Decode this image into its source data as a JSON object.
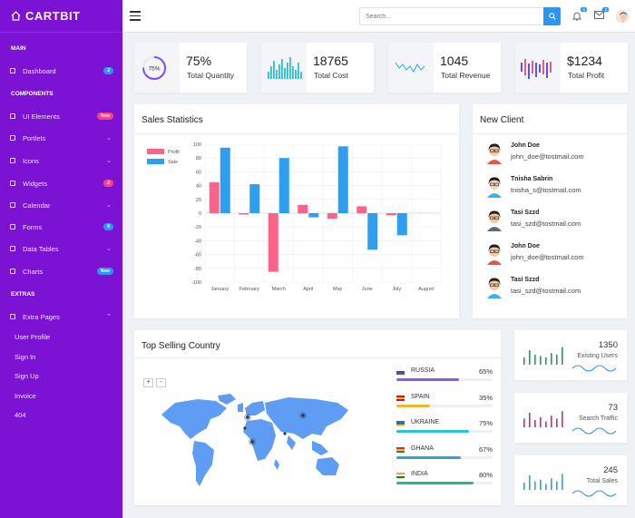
{
  "brand": "CARTBIT",
  "sidebar": {
    "sections": {
      "main": "MAIN",
      "components": "COMPONENTS",
      "extras": "EXTRAS"
    },
    "items": [
      {
        "label": "Dashboard",
        "badge": "2",
        "badge_color": "#2d95f0"
      },
      {
        "label": "UI Elements",
        "badge": "New",
        "badge_color": "#ff3f7f"
      },
      {
        "label": "Portlets"
      },
      {
        "label": "Icons"
      },
      {
        "label": "Widgets",
        "badge": "2",
        "badge_color": "#ff3f7f"
      },
      {
        "label": "Calendar"
      },
      {
        "label": "Forms",
        "badge": "6",
        "badge_color": "#2d95f0"
      },
      {
        "label": "Data Tables"
      },
      {
        "label": "Charts",
        "badge": "New",
        "badge_color": "#2d95f0"
      },
      {
        "label": "Extra Pages"
      }
    ],
    "subitems": [
      "User Profile",
      "Sign In",
      "Sign Up",
      "Invoice",
      "404"
    ]
  },
  "topbar": {
    "search_placeholder": "Search...",
    "notif_count": "6",
    "mail_count": "3"
  },
  "stats": [
    {
      "value": "75%",
      "label": "Total Quantity",
      "ring": "75%",
      "color": "#7c4dff"
    },
    {
      "value": "18765",
      "label": "Total Cost",
      "color": "#2bc0d6"
    },
    {
      "value": "1045",
      "label": "Total Revenue",
      "color": "#2ba5d6"
    },
    {
      "value": "$1234",
      "label": "Total Profit",
      "color": "#6a4ee0"
    }
  ],
  "sales": {
    "title": "Sales Statistics"
  },
  "chart_data": {
    "type": "bar",
    "categories": [
      "January",
      "February",
      "March",
      "April",
      "May",
      "June",
      "July",
      "August"
    ],
    "series": [
      {
        "name": "Profit",
        "color": "#fb6488",
        "values": [
          45,
          -2,
          -85,
          12,
          -8,
          10,
          -3,
          null
        ]
      },
      {
        "name": "Sale",
        "color": "#2d9ef0",
        "values": [
          95,
          42,
          80,
          -6,
          97,
          -53,
          -32,
          null
        ]
      }
    ],
    "ylim": [
      -100,
      100
    ],
    "yticks": [
      "100",
      "80",
      "60",
      "40",
      "20",
      "0",
      "-20",
      "-40",
      "-60",
      "-80",
      "-100"
    ]
  },
  "clients": {
    "title": "New Client",
    "list": [
      {
        "name": "John Doe",
        "email": "john_doe@tostmail.com",
        "hair": "#222",
        "skin": "#f3c9a6",
        "shirt": "#e8543d"
      },
      {
        "name": "Tnisha Sabrin",
        "email": "tnisha_s@tostmail.com",
        "hair": "#1a1a1a",
        "skin": "#f6d2b8",
        "shirt": "#3bb3e8"
      },
      {
        "name": "Tasi Szzd",
        "email": "tasi_szd@tostmail.com",
        "hair": "#222",
        "skin": "#f3c9a6",
        "shirt": "#5e6a7a"
      },
      {
        "name": "John Doe",
        "email": "john_doe@tostmail.com",
        "hair": "#222",
        "skin": "#f3c9a6",
        "shirt": "#e8543d"
      },
      {
        "name": "Tasi Szzd",
        "email": "tasi_szd@tostmail.com",
        "hair": "#222",
        "skin": "#f3c9a6",
        "shirt": "#3bb3e8"
      }
    ]
  },
  "countries": {
    "title": "Top Selling Country",
    "zoom_in": "+",
    "zoom_out": "-",
    "list": [
      {
        "name": "RUSSIA",
        "pct": "65%",
        "value": 0.65,
        "color": "#8c5ce8",
        "flag": [
          "#fff",
          "#2850c8",
          "#d42b2b"
        ]
      },
      {
        "name": "SPAIN",
        "pct": "35%",
        "value": 0.35,
        "color": "#f3b431",
        "flag": [
          "#c8102e",
          "#ffc400",
          "#c8102e"
        ]
      },
      {
        "name": "UKRAINE",
        "pct": "75%",
        "value": 0.75,
        "color": "#2bc0d6",
        "flag": [
          "#2a6ad8",
          "#2a6ad8",
          "#ffd700"
        ]
      },
      {
        "name": "GHANA",
        "pct": "67%",
        "value": 0.67,
        "color": "#2ba5d6",
        "flag": [
          "#d42b2b",
          "#f3c431",
          "#2a8a3e"
        ]
      },
      {
        "name": "INDIA",
        "pct": "80%",
        "value": 0.8,
        "color": "#2bba7e",
        "flag": [
          "#ff9933",
          "#fff",
          "#138808"
        ]
      }
    ]
  },
  "minis": [
    {
      "value": "1350",
      "label": "Existing Users",
      "color": "#1f9e55",
      "wave": "#2d8ee8",
      "bars": [
        0.5,
        1,
        0.7,
        0.6,
        0.5,
        0.8,
        0.7,
        1.2
      ]
    },
    {
      "value": "73",
      "label": "Search Traffic",
      "color": "#c8305f",
      "wave": "#2d8ee8",
      "bars": [
        0.6,
        1,
        0.5,
        0.7,
        0.4,
        0.8,
        0.6,
        1.1
      ]
    },
    {
      "value": "245",
      "label": "Total Sales",
      "color": "#2ba5d6",
      "wave": "#2d8ee8",
      "bars": [
        0.5,
        1,
        0.6,
        0.7,
        0.4,
        0.8,
        0.6,
        1.1
      ]
    }
  ]
}
